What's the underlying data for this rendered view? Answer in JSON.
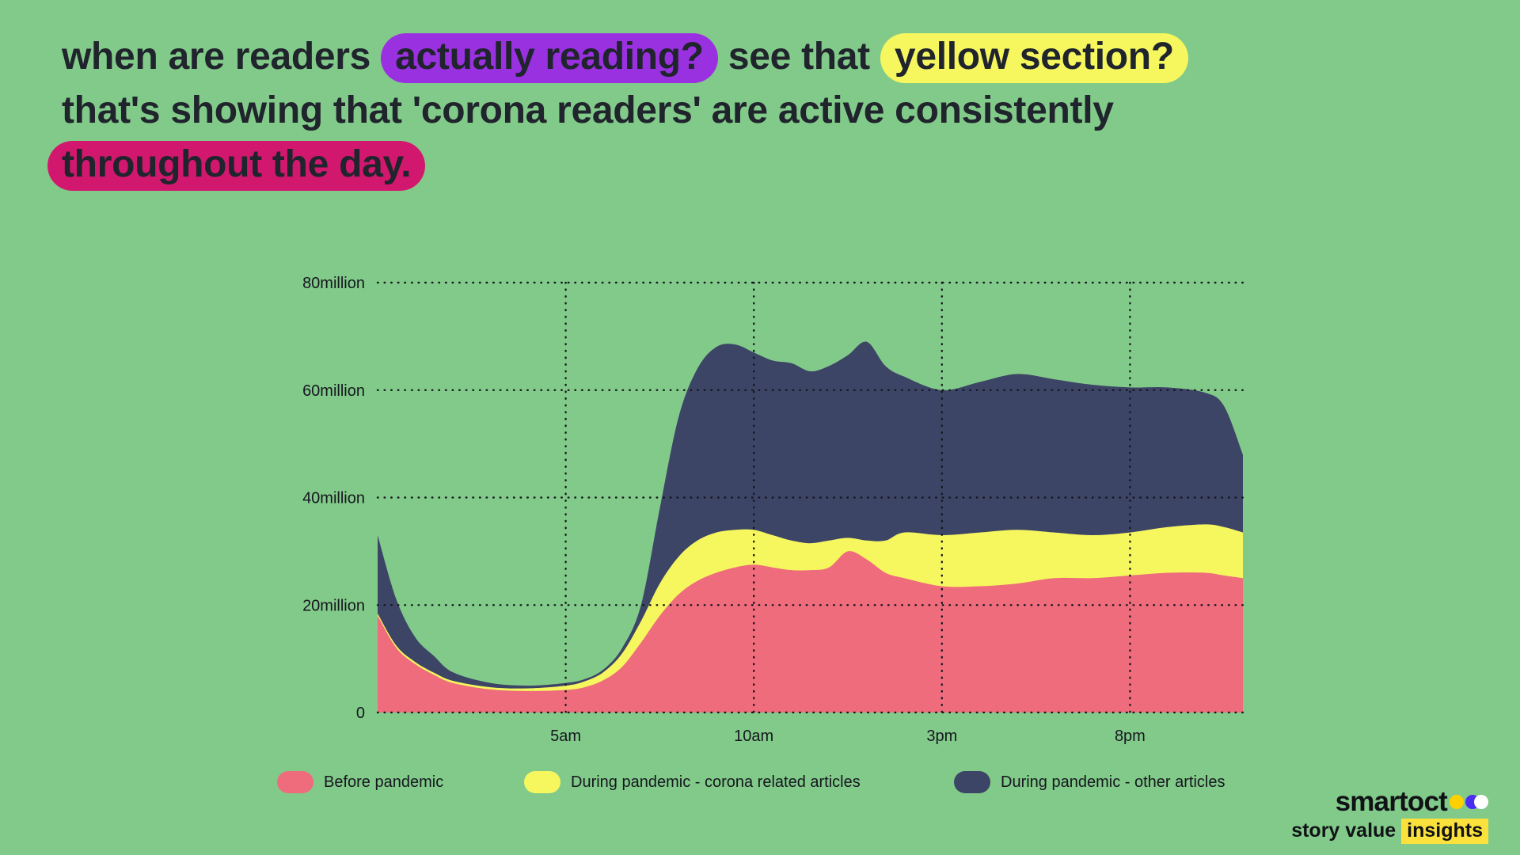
{
  "headline": {
    "line1_part1": "when are readers",
    "line1_highlight1": "actually reading?",
    "line1_part2": "see that",
    "line1_highlight2": "yellow section?",
    "line2": "that's showing that 'corona readers' are active consistently",
    "line3_highlight": "throughout the day."
  },
  "chart_data": {
    "type": "area",
    "stacked": true,
    "x_unit": "hour_of_day",
    "x": [
      0,
      0.5,
      1,
      1.5,
      2,
      3,
      4,
      5,
      5.5,
      6,
      6.5,
      7,
      7.5,
      8,
      8.5,
      9,
      9.5,
      10,
      10.5,
      11,
      11.5,
      12,
      12.5,
      13,
      13.5,
      14,
      15,
      16,
      17,
      18,
      19,
      20,
      21,
      22,
      22.5,
      23
    ],
    "series": [
      {
        "name": "Before pandemic",
        "color": "#ee6c7c",
        "values": [
          18,
          12,
          9,
          7,
          5.5,
          4.3,
          4,
          4.2,
          4.7,
          6,
          8.5,
          13,
          18,
          22,
          24.5,
          26,
          27,
          27.5,
          27,
          26.5,
          26.5,
          27,
          30,
          28.5,
          26,
          25,
          23.5,
          23.5,
          24,
          25,
          25,
          25.5,
          26,
          26,
          25.5,
          25
        ]
      },
      {
        "name": "During pandemic - corona related articles",
        "color": "#f6f75e",
        "values": [
          0.4,
          0.4,
          0.4,
          0.4,
          0.4,
          0.4,
          0.5,
          0.8,
          1.1,
          1.5,
          2.5,
          4,
          6,
          7,
          7.5,
          7.5,
          7,
          6.5,
          6,
          5.5,
          5,
          5,
          2.5,
          3.5,
          6,
          8.5,
          9.5,
          10,
          10,
          8.5,
          8,
          8,
          8.5,
          9,
          9,
          8.5
        ]
      },
      {
        "name": "During pandemic - other articles",
        "color": "#3d4566",
        "values": [
          14.6,
          8.6,
          4.6,
          3.1,
          1.6,
          0.8,
          0.5,
          0.5,
          0.4,
          0.5,
          1,
          3,
          14,
          26,
          32,
          34.5,
          34.5,
          33,
          32.5,
          33,
          32,
          32.5,
          34,
          37,
          32.5,
          29,
          27,
          28,
          29,
          28.5,
          28,
          27,
          26,
          24.5,
          22.5,
          14.5
        ]
      }
    ],
    "y_ticks": [
      {
        "label": "0",
        "value": 0
      },
      {
        "label": "20million",
        "value": 20
      },
      {
        "label": "40million",
        "value": 40
      },
      {
        "label": "60million",
        "value": 60
      },
      {
        "label": "80million",
        "value": 80
      }
    ],
    "x_ticks": [
      {
        "label": "5am",
        "value": 5
      },
      {
        "label": "10am",
        "value": 10
      },
      {
        "label": "3pm",
        "value": 15
      },
      {
        "label": "8pm",
        "value": 20
      }
    ],
    "ylim": [
      0,
      80
    ],
    "grid": "dotted",
    "legend_position": "bottom",
    "title": ""
  },
  "legend": {
    "items": [
      {
        "label": "Before pandemic"
      },
      {
        "label": "During pandemic - corona related articles"
      },
      {
        "label": "During pandemic - other articles"
      }
    ]
  },
  "logo": {
    "word": "smartoct",
    "dots": [
      "yellow-dot",
      "indigo-dot",
      "white-dot"
    ],
    "tagline_prefix": "story value",
    "tagline_highlight": "insights"
  },
  "colors": {
    "background": "#82ca89",
    "text": "#20242c",
    "highlight_purple": "#9a31e1",
    "highlight_yellow": "#f6f75e",
    "highlight_magenta": "#d2186e",
    "series_pink": "#ee6c7c",
    "series_yellow": "#f6f75e",
    "series_navy": "#3d4566"
  }
}
